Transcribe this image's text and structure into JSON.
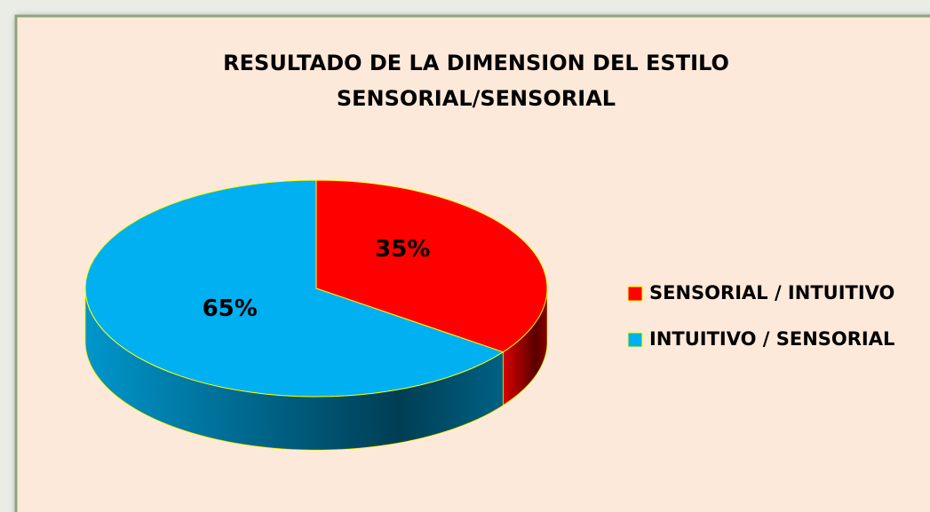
{
  "chart_data": {
    "type": "pie",
    "title": [
      "RESULTADO DE LA DIMENSION DEL ESTILO",
      "SENSORIAL/SENSORIAL"
    ],
    "categories": [
      "SENSORIAL / INTUITIVO",
      "INTUITIVO / SENSORIAL"
    ],
    "values": [
      35,
      65
    ],
    "value_labels": [
      "35%",
      "65%"
    ],
    "colors": [
      "#ff0000",
      "#00b0f0"
    ],
    "legend": "right"
  }
}
